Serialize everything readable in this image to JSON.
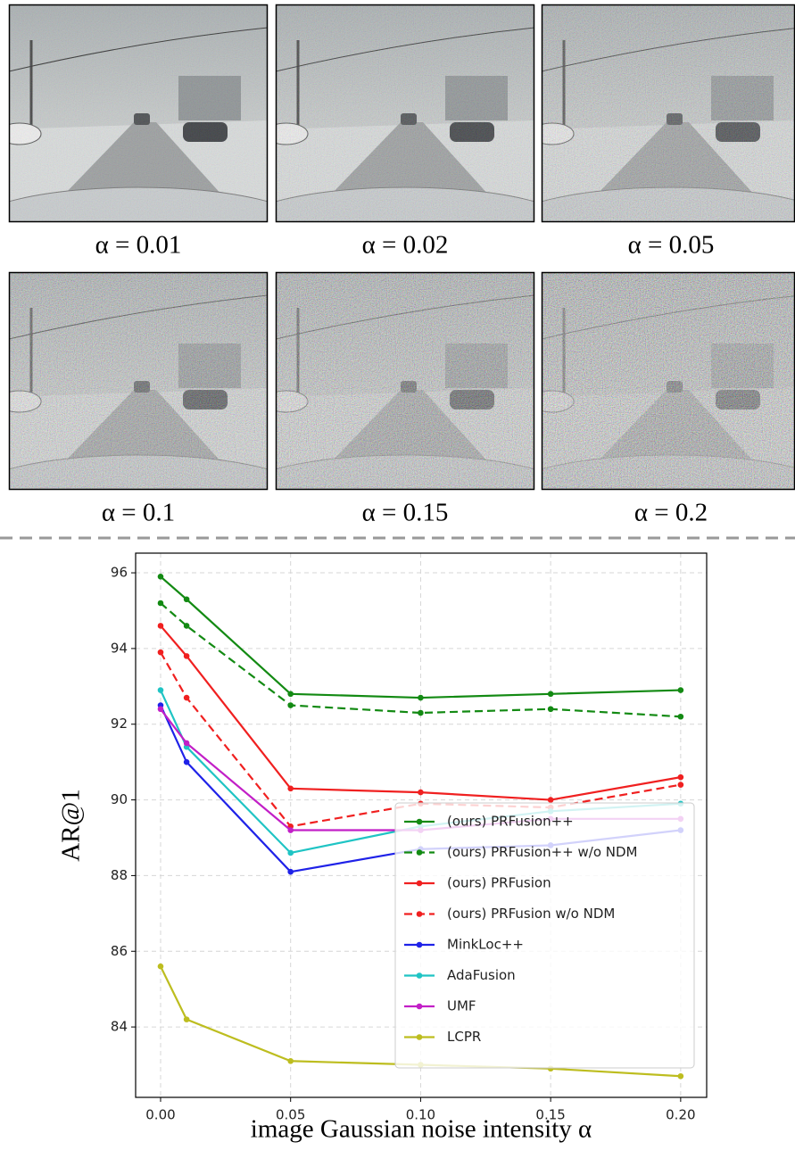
{
  "images": [
    {
      "label": "α = 0.01"
    },
    {
      "label": "α = 0.02"
    },
    {
      "label": "α = 0.05"
    },
    {
      "label": "α = 0.1"
    },
    {
      "label": "α = 0.15"
    },
    {
      "label": "α = 0.2"
    }
  ],
  "chart_data": {
    "type": "line",
    "x": [
      0,
      0.01,
      0.05,
      0.1,
      0.15,
      0.2
    ],
    "x_label": "image Gaussian noise intensity α",
    "y_label": "AR@1",
    "xlim": [
      -0.0096,
      0.21
    ],
    "ylim": [
      82.14,
      96.52
    ],
    "xticks": [
      {
        "value": 0,
        "label": "0.00"
      },
      {
        "value": 0.05,
        "label": "0.05"
      },
      {
        "value": 0.1,
        "label": "0.10"
      },
      {
        "value": 0.15,
        "label": "0.15"
      },
      {
        "value": 0.2,
        "label": "0.20"
      }
    ],
    "yticks": [
      84,
      86,
      88,
      90,
      92,
      94,
      96
    ],
    "grid": true,
    "legend": "lower right",
    "series": [
      {
        "name": "(ours) PRFusion++",
        "color": "#138a13",
        "linestyle": "solid",
        "values": [
          95.9,
          95.3,
          92.8,
          92.7,
          92.8,
          92.9
        ]
      },
      {
        "name": "(ours) PRFusion++ w/o NDM",
        "color": "#138a13",
        "linestyle": "dashed",
        "values": [
          95.2,
          94.6,
          92.5,
          92.3,
          92.4,
          92.2
        ]
      },
      {
        "name": "(ours) PRFusion",
        "color": "#f02020",
        "linestyle": "solid",
        "values": [
          94.6,
          93.8,
          90.3,
          90.2,
          90.0,
          90.6
        ]
      },
      {
        "name": "(ours) PRFusion w/o NDM",
        "color": "#f02020",
        "linestyle": "dashed",
        "values": [
          93.9,
          92.7,
          89.3,
          89.9,
          89.8,
          90.4
        ]
      },
      {
        "name": "MinkLoc++",
        "color": "#1f22e8",
        "linestyle": "solid",
        "values": [
          92.5,
          91.0,
          88.1,
          88.7,
          88.8,
          89.2
        ]
      },
      {
        "name": "AdaFusion",
        "color": "#1fc4c4",
        "linestyle": "solid",
        "values": [
          92.9,
          91.4,
          88.6,
          89.3,
          89.7,
          89.9
        ]
      },
      {
        "name": "UMF",
        "color": "#c21fc7",
        "linestyle": "solid",
        "values": [
          92.4,
          91.5,
          89.2,
          89.2,
          89.5,
          89.5
        ]
      },
      {
        "name": "LCPR",
        "color": "#bdbd1f",
        "linestyle": "solid",
        "values": [
          85.6,
          84.2,
          83.1,
          83.0,
          82.9,
          82.7
        ]
      }
    ]
  }
}
